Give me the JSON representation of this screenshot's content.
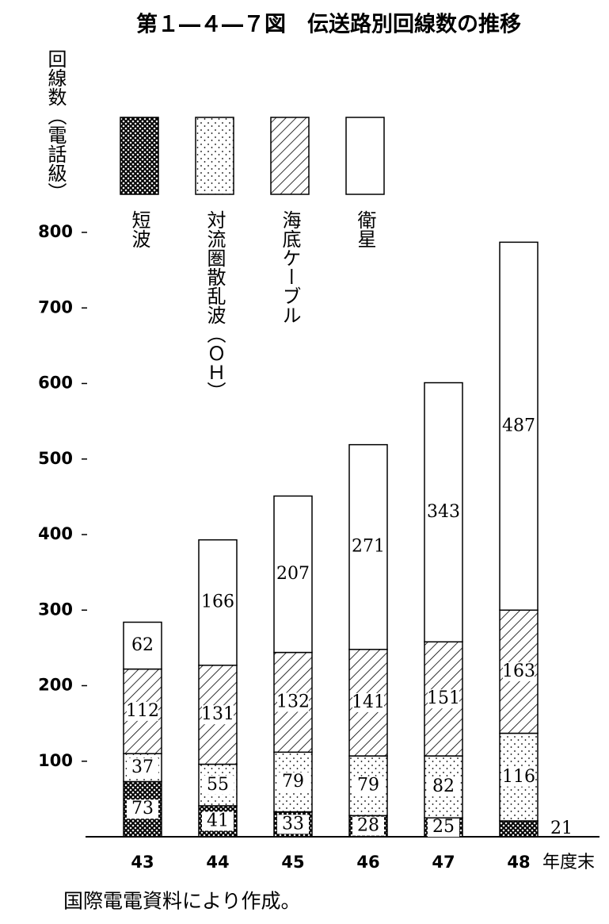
{
  "chart_data": {
    "type": "stacked_bar",
    "title": "第１―４―７図　伝送路別回線数の推移",
    "ylabel": "回線数（電話級）",
    "xlabel": "年度末",
    "source": "国際電電資料により作成。",
    "categories": [
      "43",
      "44",
      "45",
      "46",
      "47",
      "48"
    ],
    "series": [
      {
        "name": "短波",
        "color": "#000000",
        "pattern": "crosshatch",
        "values": [
          73,
          41,
          33,
          28,
          25,
          21
        ]
      },
      {
        "name": "対流圏散乱波（ＯＨ）",
        "color": "#000000",
        "pattern": "dots",
        "values": [
          37,
          55,
          79,
          79,
          82,
          116
        ]
      },
      {
        "name": "海底ケーブル",
        "color": "#000000",
        "pattern": "hatch",
        "values": [
          112,
          131,
          132,
          141,
          151,
          163
        ]
      },
      {
        "name": "衛星",
        "color": "#000000",
        "pattern": "none",
        "values": [
          62,
          166,
          207,
          271,
          343,
          487
        ]
      }
    ],
    "ylim": [
      0,
      800
    ],
    "yticks": [
      100,
      200,
      300,
      400,
      500,
      600,
      700,
      800
    ]
  }
}
